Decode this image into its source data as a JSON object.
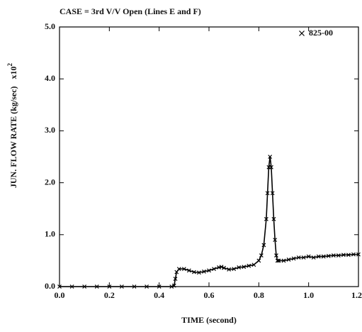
{
  "chart_data": {
    "type": "line",
    "title": "CASE = 3rd V/V Open (Lines E and F)",
    "x_label": "TIME (second)",
    "y_label": "JUN. FLOW RATE (kg/sec)",
    "y_multiplier": "x10",
    "y_multiplier_exponent": "2",
    "xlim": [
      0,
      1.2
    ],
    "ylim": [
      0,
      5
    ],
    "xticks": [
      {
        "value": 0,
        "label": "0.0"
      },
      {
        "value": 0.2,
        "label": "0.2"
      },
      {
        "value": 0.4,
        "label": "0.4"
      },
      {
        "value": 0.6,
        "label": "0.6"
      },
      {
        "value": 0.8,
        "label": "0.8"
      },
      {
        "value": 1.0,
        "label": "1.0"
      },
      {
        "value": 1.2,
        "label": "1.2"
      }
    ],
    "yticks": [
      {
        "value": 0,
        "label": "0.0"
      },
      {
        "value": 1,
        "label": "1.0"
      },
      {
        "value": 2,
        "label": "2.0"
      },
      {
        "value": 3,
        "label": "3.0"
      },
      {
        "value": 4,
        "label": "4.0"
      },
      {
        "value": 5,
        "label": "5.0"
      }
    ],
    "legend_position": "upper right",
    "x": [
      0,
      0.05,
      0.1,
      0.15,
      0.2,
      0.25,
      0.3,
      0.35,
      0.4,
      0.45,
      0.46,
      0.465,
      0.47,
      0.48,
      0.5,
      0.52,
      0.54,
      0.56,
      0.58,
      0.6,
      0.62,
      0.64,
      0.65,
      0.66,
      0.68,
      0.7,
      0.72,
      0.74,
      0.76,
      0.78,
      0.8,
      0.81,
      0.82,
      0.83,
      0.835,
      0.84,
      0.845,
      0.85,
      0.855,
      0.86,
      0.865,
      0.87,
      0.875,
      0.88,
      0.9,
      0.92,
      0.94,
      0.96,
      0.98,
      1.0,
      1.02,
      1.04,
      1.06,
      1.08,
      1.1,
      1.12,
      1.14,
      1.16,
      1.18,
      1.2
    ],
    "series": [
      {
        "name": "825-00",
        "color": "#000000",
        "marker": "x",
        "values": [
          0,
          0,
          0,
          0,
          0,
          0,
          0,
          0,
          0,
          0,
          0.02,
          0.15,
          0.28,
          0.34,
          0.34,
          0.31,
          0.28,
          0.27,
          0.29,
          0.31,
          0.34,
          0.37,
          0.38,
          0.36,
          0.33,
          0.34,
          0.37,
          0.38,
          0.4,
          0.42,
          0.5,
          0.6,
          0.8,
          1.3,
          1.8,
          2.3,
          2.5,
          2.3,
          1.8,
          1.3,
          0.9,
          0.6,
          0.5,
          0.5,
          0.5,
          0.52,
          0.54,
          0.56,
          0.56,
          0.58,
          0.56,
          0.58,
          0.58,
          0.59,
          0.6,
          0.6,
          0.61,
          0.61,
          0.62,
          0.62
        ]
      }
    ]
  }
}
